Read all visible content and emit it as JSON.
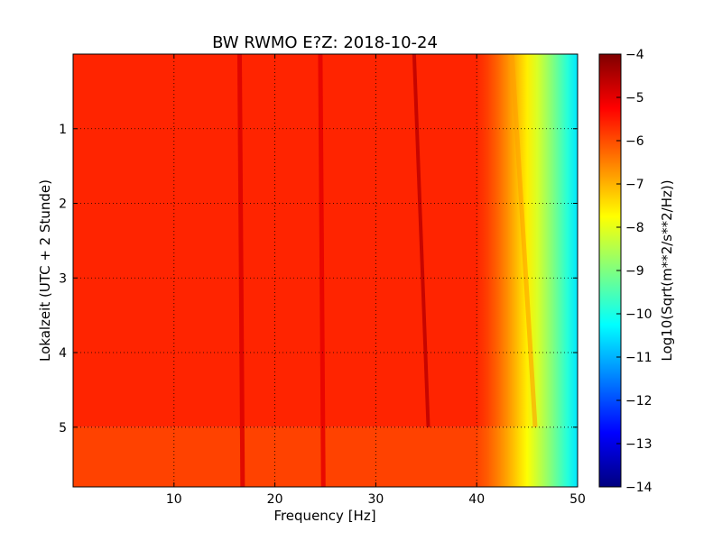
{
  "chart_data": {
    "type": "heatmap",
    "title": "BW RWMO E?Z: 2018-10-24",
    "xlabel": "Frequency [Hz]",
    "ylabel": "Lokalzeit (UTC + 2 Stunde)",
    "xlim": [
      0,
      50
    ],
    "ylim": [
      5.8,
      0
    ],
    "x_ticks": [
      10,
      20,
      30,
      40,
      50
    ],
    "y_ticks": [
      1,
      2,
      3,
      4,
      5
    ],
    "grid": true,
    "colormap": "jet",
    "colorbar": {
      "label": "Log10(Sqrt(m**2/s**2/Hz))",
      "range": [
        -14,
        -4
      ],
      "ticks": [
        -4,
        -5,
        -6,
        -7,
        -8,
        -9,
        -10,
        -11,
        -12,
        -13,
        -14
      ]
    },
    "features": {
      "background_level": -5.6,
      "rolloff_start_hz": 40,
      "rolloff_end_hz": 50,
      "rolloff_end_level": -10.5,
      "data_change_time": 5.0,
      "lines": [
        {
          "freq_start": 33.8,
          "freq_end": 35.2,
          "time_start": 0,
          "time_end": 5.0,
          "level": -4.6
        },
        {
          "freq_start": 16.5,
          "freq_end": 16.8,
          "time_start": 0,
          "time_end": 5.8,
          "level": -4.9
        },
        {
          "freq_start": 24.5,
          "freq_end": 24.8,
          "time_start": 0,
          "time_end": 5.8,
          "level": -5.0
        },
        {
          "freq_start": 43.5,
          "freq_end": 45.8,
          "time_start": 0,
          "time_end": 5.0,
          "level": -6.8
        }
      ]
    }
  }
}
